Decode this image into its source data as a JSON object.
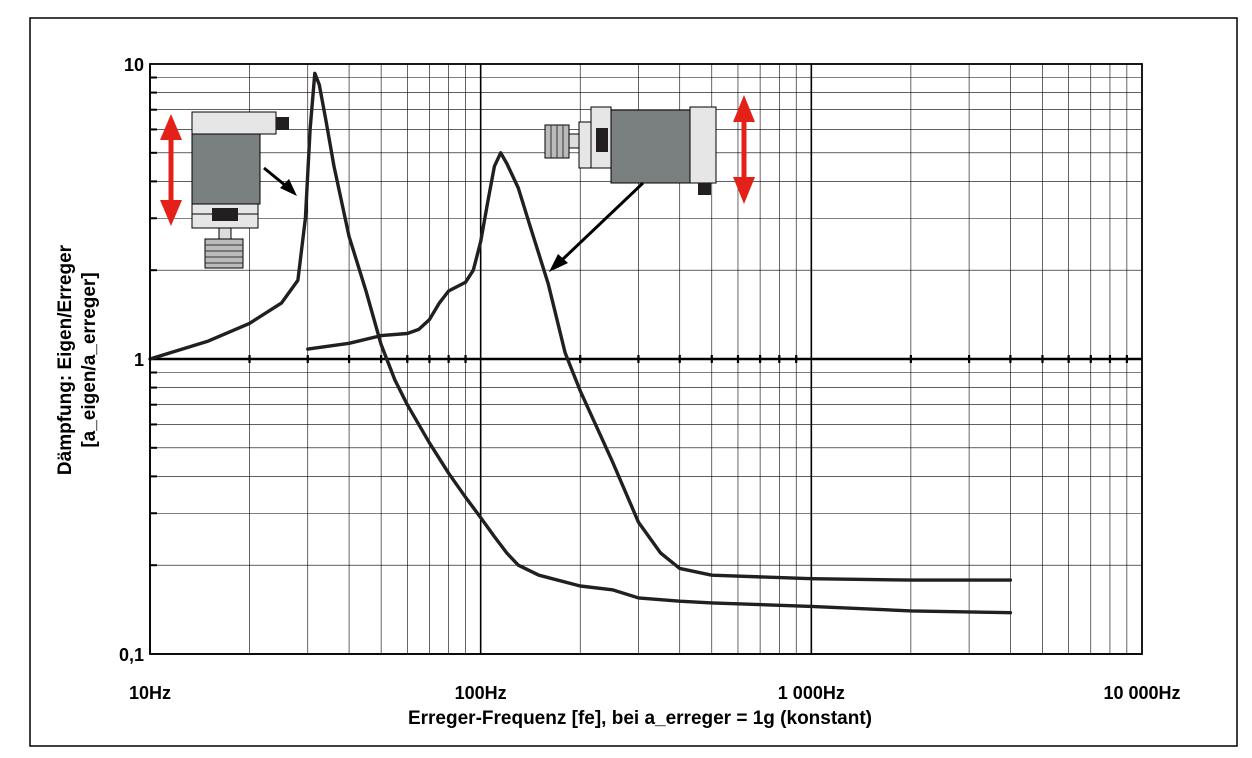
{
  "chart_data": {
    "type": "line",
    "xscale": "log",
    "yscale": "log",
    "xlim": [
      10,
      10000
    ],
    "ylim": [
      0.1,
      10
    ],
    "grid": true,
    "xlabel": "Erreger-Frequenz [fe], bei a_erreger = 1g (konstant)",
    "ylabel": [
      "Dämpfung: Eigen/Erreger",
      "[a_eigen/a_erreger]"
    ],
    "x_tick_labels": [
      {
        "value": 10,
        "label": "10Hz"
      },
      {
        "value": 100,
        "label": "100Hz"
      },
      {
        "value": 1000,
        "label": "1 000Hz"
      },
      {
        "value": 10000,
        "label": "10 000Hz"
      }
    ],
    "y_tick_labels": [
      {
        "value": 0.1,
        "label": "0,1"
      },
      {
        "value": 1,
        "label": "1"
      },
      {
        "value": 10,
        "label": "10"
      }
    ],
    "colors": {
      "curve": "#231f20",
      "grid": "#000000",
      "arrow": "#e32119",
      "device_body": "#7a8080",
      "device_light": "#e6e6e6"
    },
    "series": [
      {
        "x": [
          10,
          15,
          20,
          25,
          28,
          29.5,
          30.5,
          31.5,
          32.5,
          34,
          36,
          40,
          45,
          50,
          55,
          60,
          70,
          80,
          90,
          100,
          110,
          120,
          130,
          150,
          200,
          250,
          300,
          400,
          500,
          1000,
          2000,
          4000
        ],
        "y": [
          1.0,
          1.15,
          1.32,
          1.55,
          1.85,
          3.0,
          6.0,
          9.3,
          8.5,
          6.5,
          4.5,
          2.6,
          1.7,
          1.12,
          0.85,
          0.7,
          0.52,
          0.41,
          0.34,
          0.29,
          0.25,
          0.22,
          0.2,
          0.185,
          0.17,
          0.165,
          0.155,
          0.151,
          0.149,
          0.145,
          0.14,
          0.138
        ]
      },
      {
        "x": [
          30,
          40,
          50,
          60,
          65,
          70,
          75,
          80,
          90,
          95,
          100,
          105,
          110,
          115,
          120,
          130,
          140,
          160,
          180,
          200,
          250,
          300,
          350,
          400,
          500,
          1000,
          2000,
          4000
        ],
        "y": [
          1.08,
          1.13,
          1.2,
          1.22,
          1.26,
          1.36,
          1.55,
          1.7,
          1.82,
          2.0,
          2.5,
          3.4,
          4.5,
          5.0,
          4.6,
          3.8,
          2.9,
          1.8,
          1.05,
          0.78,
          0.45,
          0.28,
          0.22,
          0.195,
          0.185,
          0.18,
          0.178,
          0.178
        ]
      }
    ]
  }
}
